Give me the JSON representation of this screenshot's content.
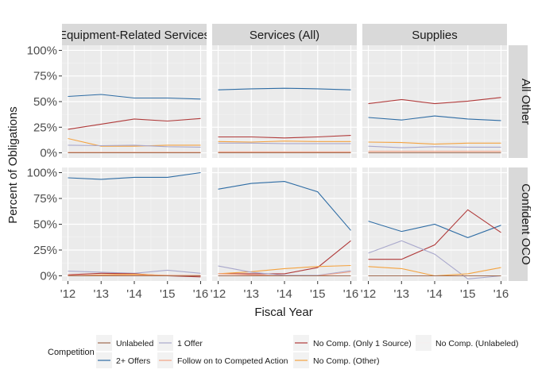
{
  "chart_data": {
    "type": "line",
    "facet_columns": [
      "Equipment-Related Services",
      "Services (All)",
      "Supplies"
    ],
    "facet_rows": [
      "All Other",
      "Confident OCO"
    ],
    "x": [
      "'12",
      "'13",
      "'14",
      "'15",
      "'16"
    ],
    "x_values": [
      2012,
      2013,
      2014,
      2015,
      2016
    ],
    "xlabel": "Fiscal Year",
    "ylabel": "Percent of Obligations",
    "ylim": [
      -0.05,
      1.05
    ],
    "y_ticks": [
      "0%",
      "25%",
      "50%",
      "75%",
      "100%"
    ],
    "y_tick_values": [
      0,
      0.25,
      0.5,
      0.75,
      1.0
    ],
    "grid": true,
    "legend": {
      "title": "Competition",
      "placement": "bottom",
      "entries": [
        "Unlabeled",
        "2+ Offers",
        "1 Offer",
        "Follow on to Competed Action",
        "No Comp. (Only 1 Source)",
        "No Comp. (Other)",
        "No Comp. (Unlabeled)"
      ]
    },
    "colors": {
      "Unlabeled": "#A06A50",
      "2+ Offers": "#2E6CA4",
      "1 Offer": "#A9A8CC",
      "Follow on to Competed Action": "#F2A285",
      "No Comp. (Only 1 Source)": "#B03A3A",
      "No Comp. (Other)": "#F4A340",
      "No Comp. (Unlabeled)": "#F5F0EF"
    },
    "panels": [
      {
        "row": 0,
        "col": 0,
        "series": [
          {
            "name": "2+ Offers",
            "values": [
              0.55,
              0.57,
              0.535,
              0.535,
              0.525
            ]
          },
          {
            "name": "No Comp. (Only 1 Source)",
            "values": [
              0.23,
              0.28,
              0.33,
              0.31,
              0.335
            ]
          },
          {
            "name": "No Comp. (Other)",
            "values": [
              0.14,
              0.065,
              0.065,
              0.075,
              0.075
            ]
          },
          {
            "name": "1 Offer",
            "values": [
              0.075,
              0.07,
              0.075,
              0.06,
              0.055
            ]
          },
          {
            "name": "Follow on to Competed Action",
            "values": [
              0.005,
              0.005,
              0.005,
              0.005,
              0.005
            ]
          },
          {
            "name": "Unlabeled",
            "values": [
              0.0,
              0.0,
              0.0,
              0.0,
              0.0
            ]
          }
        ]
      },
      {
        "row": 0,
        "col": 1,
        "series": [
          {
            "name": "2+ Offers",
            "values": [
              0.615,
              0.625,
              0.63,
              0.625,
              0.615
            ]
          },
          {
            "name": "No Comp. (Only 1 Source)",
            "values": [
              0.155,
              0.155,
              0.145,
              0.155,
              0.17
            ]
          },
          {
            "name": "No Comp. (Other)",
            "values": [
              0.11,
              0.105,
              0.115,
              0.11,
              0.11
            ]
          },
          {
            "name": "1 Offer",
            "values": [
              0.095,
              0.095,
              0.09,
              0.09,
              0.09
            ]
          },
          {
            "name": "Follow on to Competed Action",
            "values": [
              0.01,
              0.01,
              0.01,
              0.01,
              0.01
            ]
          },
          {
            "name": "Unlabeled",
            "values": [
              0.0,
              0.0,
              0.0,
              0.0,
              0.0
            ]
          }
        ]
      },
      {
        "row": 0,
        "col": 2,
        "series": [
          {
            "name": "No Comp. (Only 1 Source)",
            "values": [
              0.48,
              0.52,
              0.48,
              0.505,
              0.54
            ]
          },
          {
            "name": "2+ Offers",
            "values": [
              0.345,
              0.32,
              0.36,
              0.33,
              0.315
            ]
          },
          {
            "name": "No Comp. (Other)",
            "values": [
              0.105,
              0.1,
              0.085,
              0.095,
              0.095
            ]
          },
          {
            "name": "1 Offer",
            "values": [
              0.065,
              0.05,
              0.06,
              0.055,
              0.055
            ]
          },
          {
            "name": "Follow on to Competed Action",
            "values": [
              0.015,
              0.015,
              0.015,
              0.015,
              0.015
            ]
          },
          {
            "name": "Unlabeled",
            "values": [
              0.0,
              0.0,
              0.0,
              0.0,
              0.0
            ]
          }
        ]
      },
      {
        "row": 1,
        "col": 0,
        "series": [
          {
            "name": "2+ Offers",
            "values": [
              0.95,
              0.935,
              0.955,
              0.955,
              1.0
            ]
          },
          {
            "name": "1 Offer",
            "values": [
              0.045,
              0.035,
              0.025,
              0.055,
              0.025
            ]
          },
          {
            "name": "No Comp. (Only 1 Source)",
            "values": [
              0.01,
              0.025,
              0.02,
              0.0,
              -0.01
            ]
          },
          {
            "name": "No Comp. (Other)",
            "values": [
              0.0,
              0.01,
              0.015,
              0.005,
              0.0
            ]
          },
          {
            "name": "Follow on to Competed Action",
            "values": [
              0.005,
              0.005,
              0.005,
              0.005,
              0.005
            ]
          },
          {
            "name": "Unlabeled",
            "values": [
              0.0,
              0.0,
              0.0,
              0.0,
              0.0
            ]
          }
        ]
      },
      {
        "row": 1,
        "col": 1,
        "series": [
          {
            "name": "2+ Offers",
            "values": [
              0.84,
              0.895,
              0.915,
              0.815,
              0.44
            ]
          },
          {
            "name": "No Comp. (Only 1 Source)",
            "values": [
              0.02,
              0.02,
              0.02,
              0.08,
              0.34
            ]
          },
          {
            "name": "No Comp. (Other)",
            "values": [
              0.02,
              0.04,
              0.07,
              0.09,
              0.1
            ]
          },
          {
            "name": "1 Offer",
            "values": [
              0.095,
              0.035,
              0.005,
              0.005,
              0.05
            ]
          },
          {
            "name": "Follow on to Competed Action",
            "values": [
              0.02,
              0.01,
              0.0,
              0.0,
              0.04
            ]
          },
          {
            "name": "Unlabeled",
            "values": [
              0.0,
              0.0,
              0.0,
              0.0,
              0.0
            ]
          }
        ]
      },
      {
        "row": 1,
        "col": 2,
        "series": [
          {
            "name": "2+ Offers",
            "values": [
              0.53,
              0.43,
              0.5,
              0.37,
              0.49
            ]
          },
          {
            "name": "No Comp. (Only 1 Source)",
            "values": [
              0.16,
              0.16,
              0.3,
              0.64,
              0.42
            ]
          },
          {
            "name": "1 Offer",
            "values": [
              0.22,
              0.34,
              0.21,
              -0.03,
              0.0
            ]
          },
          {
            "name": "No Comp. (Other)",
            "values": [
              0.09,
              0.07,
              0.0,
              0.02,
              0.08
            ]
          },
          {
            "name": "Follow on to Competed Action",
            "values": [
              0.0,
              0.0,
              0.0,
              0.0,
              0.0
            ]
          },
          {
            "name": "Unlabeled",
            "values": [
              0.0,
              0.0,
              0.0,
              0.0,
              0.0
            ]
          }
        ]
      }
    ]
  }
}
